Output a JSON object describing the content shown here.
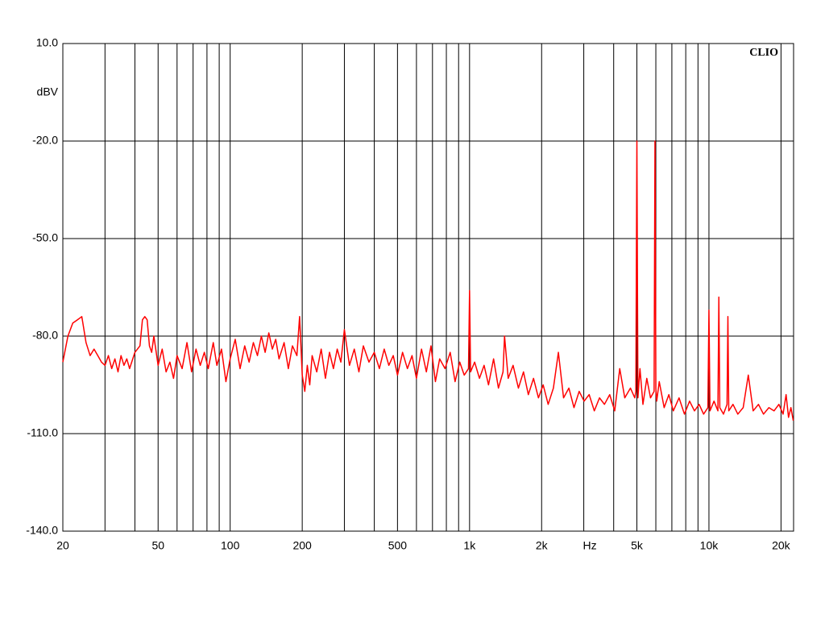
{
  "chart_data": {
    "type": "line",
    "brand": "CLIO",
    "y_label": "dBV",
    "x_label": "Hz",
    "x_label_at": 3180,
    "log_x": true,
    "grid": true,
    "xlim": [
      20,
      22570
    ],
    "ylim": [
      -140,
      10
    ],
    "yticks": [
      {
        "value": 10,
        "label": "10.0"
      },
      {
        "value": -20,
        "label": "-20.0"
      },
      {
        "value": -50,
        "label": "-50.0"
      },
      {
        "value": -80,
        "label": "-80.0"
      },
      {
        "value": -110,
        "label": "-110.0"
      },
      {
        "value": -140,
        "label": "-140.0"
      }
    ],
    "xticks": [
      20,
      50,
      100,
      200,
      500,
      {
        "value": 1000,
        "label": "1k"
      },
      {
        "value": 2000,
        "label": "2k"
      },
      {
        "value": 5000,
        "label": "5k"
      },
      {
        "value": 10000,
        "label": "10k"
      },
      {
        "value": 20000,
        "label": "20k"
      }
    ],
    "x_minor_ticks": [
      30,
      40,
      60,
      70,
      80,
      90,
      300,
      400,
      600,
      700,
      800,
      900,
      3000,
      4000,
      6000,
      7000,
      8000,
      9000
    ],
    "x": [
      20,
      21,
      22,
      23,
      24,
      25,
      26,
      27,
      28,
      29,
      30,
      31,
      32,
      33,
      34,
      35,
      36,
      37,
      38,
      40,
      42,
      43,
      44,
      45,
      46,
      47,
      48,
      50,
      52,
      54,
      56,
      58,
      60,
      63,
      66,
      69,
      72,
      75,
      78,
      81,
      85,
      88,
      92,
      96,
      100,
      105,
      110,
      115,
      120,
      125,
      130,
      135,
      140,
      145,
      150,
      155,
      160,
      168,
      175,
      182,
      190,
      195,
      200,
      205,
      210,
      215,
      220,
      230,
      240,
      250,
      260,
      270,
      280,
      290,
      300,
      315,
      330,
      345,
      360,
      380,
      400,
      420,
      440,
      460,
      480,
      500,
      525,
      550,
      575,
      600,
      630,
      660,
      690,
      720,
      750,
      790,
      830,
      870,
      910,
      950,
      990,
      1000,
      1010,
      1050,
      1100,
      1150,
      1200,
      1260,
      1320,
      1380,
      1400,
      1450,
      1520,
      1600,
      1680,
      1760,
      1850,
      1940,
      2030,
      2130,
      2240,
      2350,
      2470,
      2600,
      2730,
      2870,
      3010,
      3160,
      3320,
      3490,
      3660,
      3850,
      4040,
      4240,
      4450,
      4700,
      4900,
      4950,
      5000,
      5050,
      5150,
      5300,
      5500,
      5700,
      5900,
      5950,
      6000,
      6050,
      6200,
      6500,
      6800,
      7100,
      7500,
      7900,
      8300,
      8700,
      9100,
      9500,
      9900,
      10000,
      10100,
      10500,
      10900,
      11000,
      11100,
      11500,
      11900,
      12000,
      12100,
      12600,
      13200,
      13900,
      14600,
      15300,
      16100,
      16900,
      17800,
      18700,
      19600,
      20400,
      21000,
      21500,
      22000,
      22500
    ],
    "series": [
      {
        "color": "#ff0000",
        "values": [
          -88,
          -80,
          -76,
          -75,
          -74,
          -82,
          -86,
          -84,
          -86,
          -88,
          -89,
          -86,
          -90,
          -87,
          -91,
          -86,
          -89,
          -87,
          -90,
          -85,
          -83,
          -75,
          -74,
          -75,
          -83,
          -85,
          -80,
          -89,
          -84,
          -91,
          -88,
          -93,
          -86,
          -90,
          -82,
          -91,
          -84,
          -89,
          -85,
          -90,
          -82,
          -89,
          -84,
          -94,
          -87,
          -81,
          -90,
          -83,
          -88,
          -82,
          -86,
          -80,
          -85,
          -79,
          -84,
          -81,
          -87,
          -82,
          -90,
          -83,
          -86,
          -74,
          -92,
          -97,
          -89,
          -95,
          -86,
          -91,
          -84,
          -93,
          -85,
          -90,
          -84,
          -88,
          -78,
          -89,
          -84,
          -91,
          -83,
          -88,
          -85,
          -90,
          -84,
          -89,
          -86,
          -92,
          -85,
          -90,
          -86,
          -93,
          -84,
          -91,
          -83,
          -94,
          -87,
          -90,
          -85,
          -94,
          -88,
          -92,
          -90,
          -66,
          -91,
          -88,
          -93,
          -89,
          -95,
          -87,
          -96,
          -91,
          -80,
          -93,
          -89,
          -96,
          -91,
          -98,
          -93,
          -99,
          -95,
          -101,
          -96,
          -85,
          -99,
          -96,
          -102,
          -97,
          -100,
          -98,
          -103,
          -99,
          -101,
          -98,
          -103,
          -90,
          -99,
          -96,
          -99,
          -97,
          -20,
          -99,
          -90,
          -101,
          -93,
          -99,
          -97,
          -20,
          -96,
          -100,
          -94,
          -102,
          -98,
          -103,
          -99,
          -104,
          -100,
          -103,
          -101,
          -104,
          -102,
          -72,
          -103,
          -100,
          -103,
          -68,
          -102,
          -104,
          -101,
          -74,
          -103,
          -101,
          -104,
          -102,
          -92,
          -103,
          -101,
          -104,
          -102,
          -103,
          -101,
          -104,
          -98,
          -105,
          -102,
          -106
        ]
      }
    ]
  }
}
